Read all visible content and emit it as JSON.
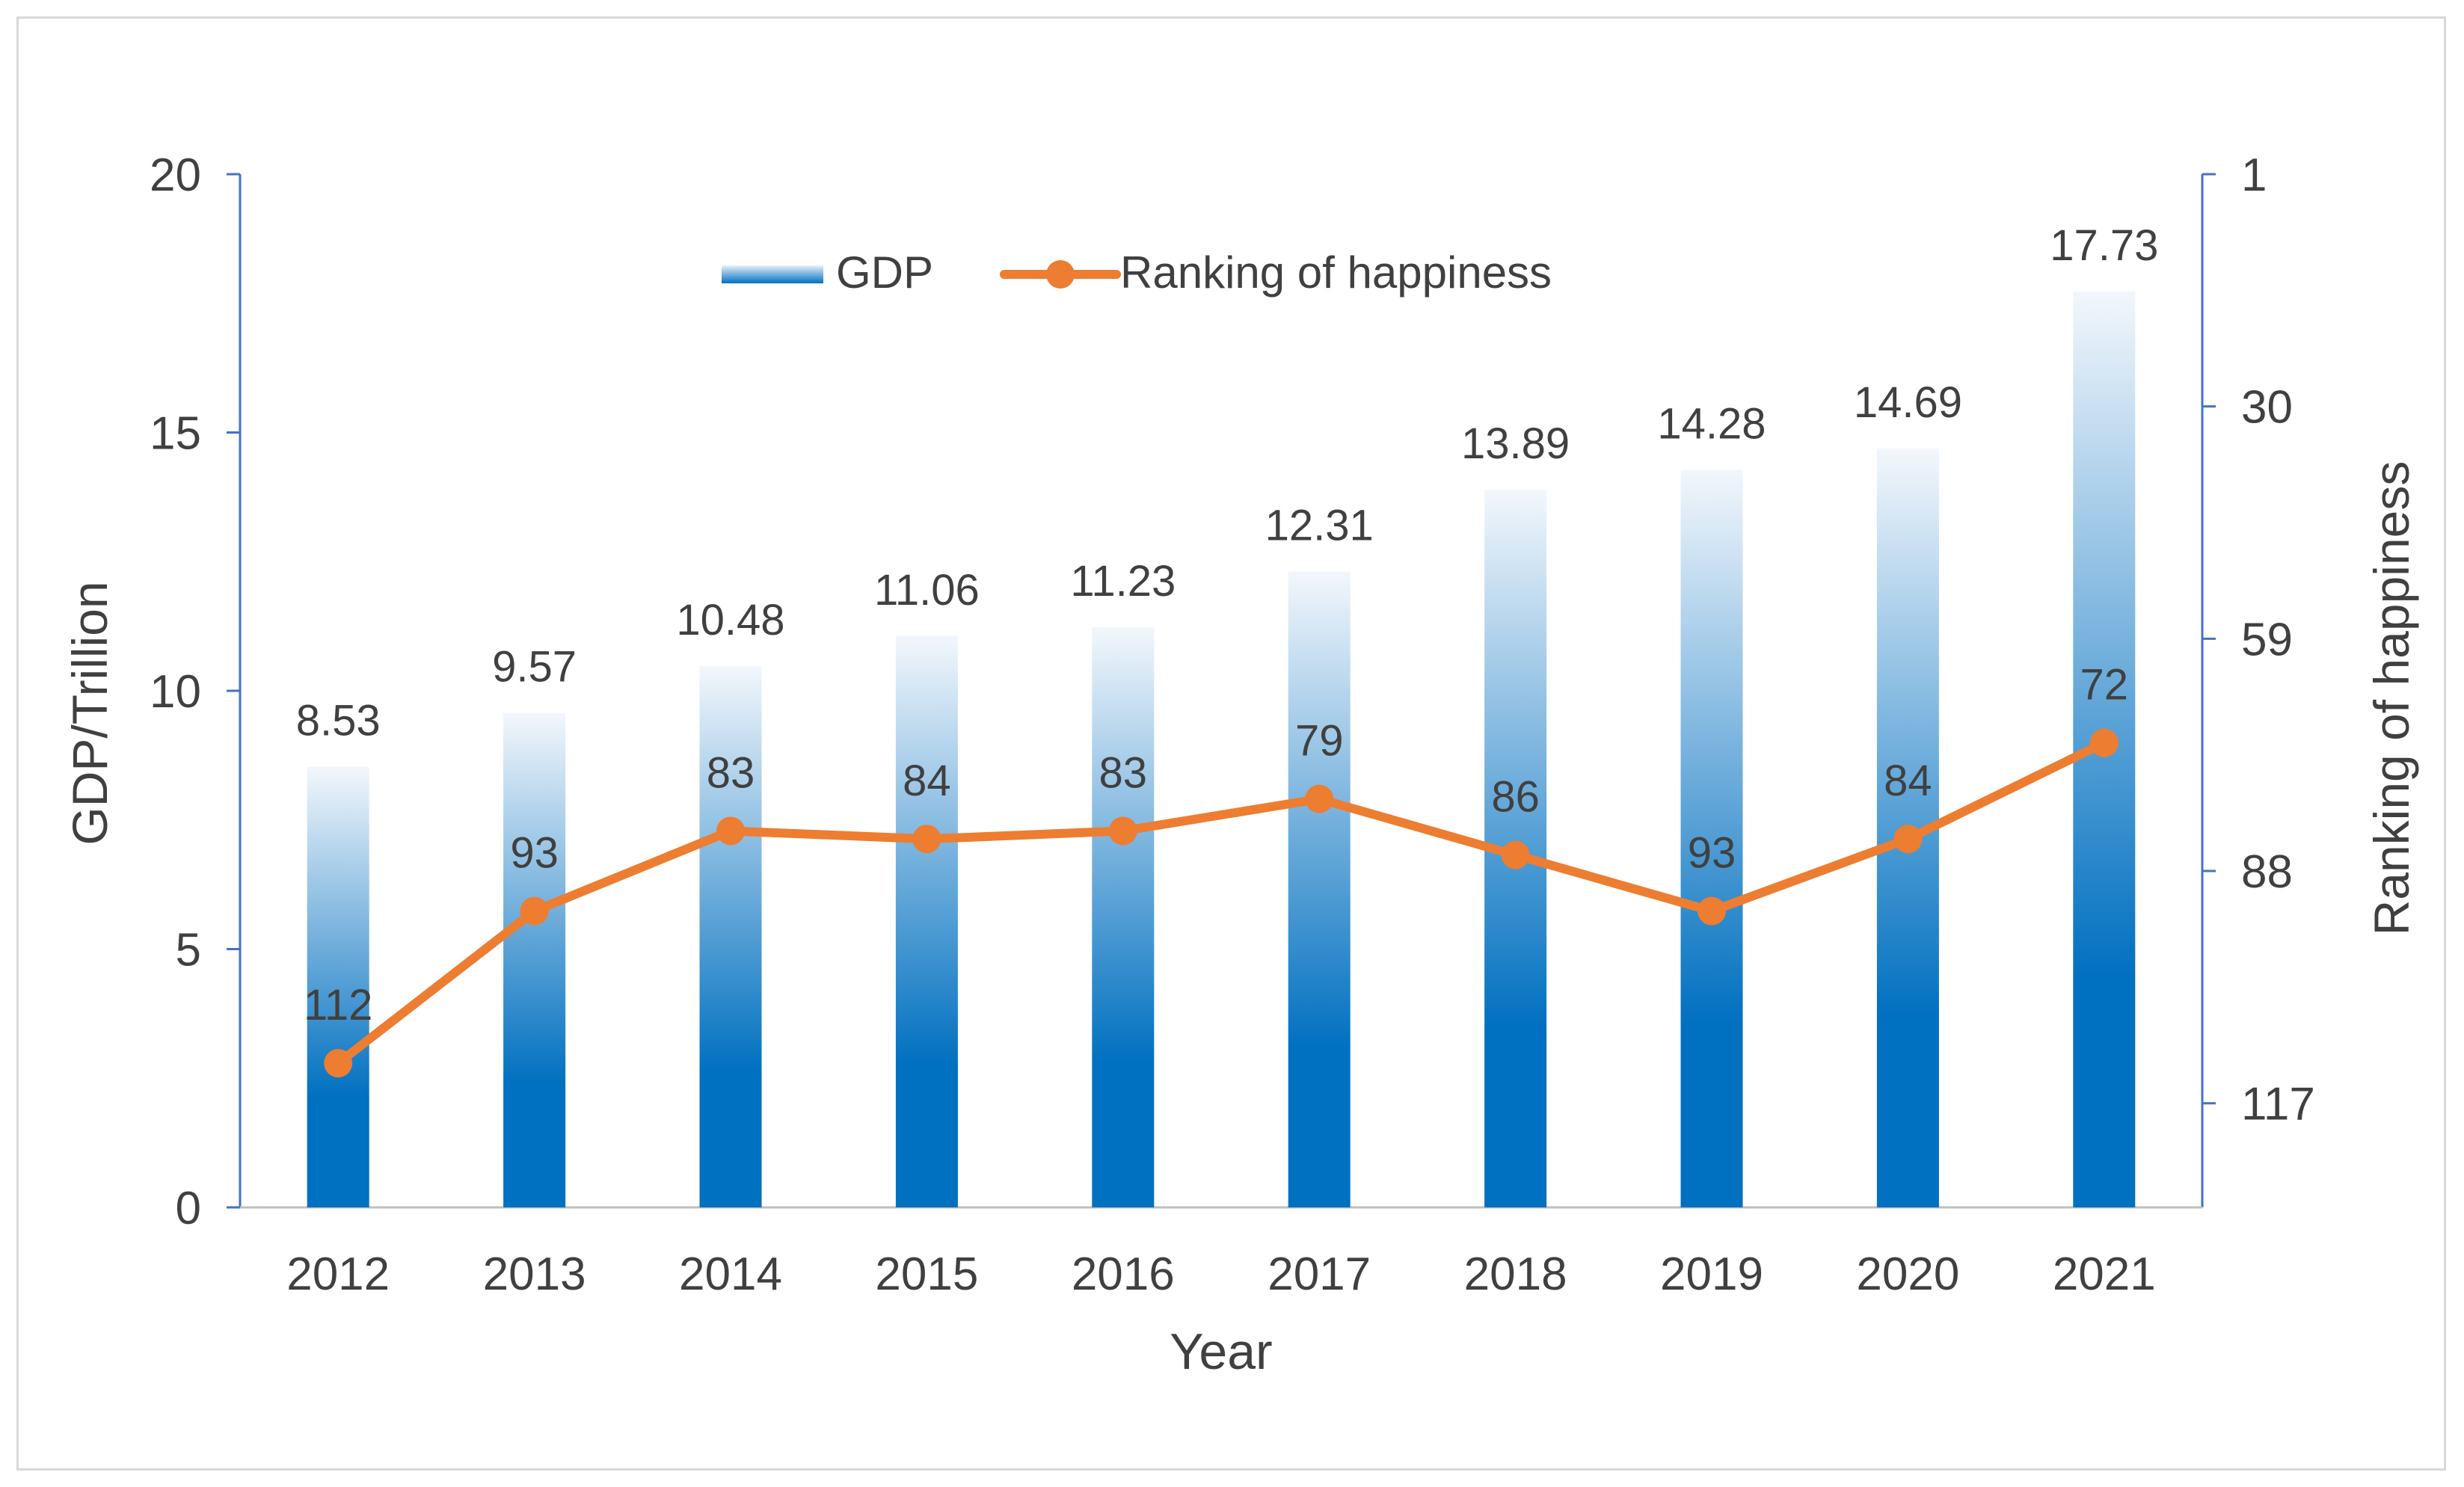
{
  "chart_data": {
    "type": "bar",
    "categories": [
      "2012",
      "2013",
      "2014",
      "2015",
      "2016",
      "2017",
      "2018",
      "2019",
      "2020",
      "2021"
    ],
    "series": [
      {
        "name": "GDP",
        "type": "bar",
        "axis": "left",
        "values": [
          8.53,
          9.57,
          10.48,
          11.06,
          11.23,
          12.31,
          13.89,
          14.28,
          14.69,
          17.73
        ],
        "labels": [
          "8.53",
          "9.57",
          "10.48",
          "11.06",
          "11.23",
          "12.31",
          "13.89",
          "14.28",
          "14.69",
          "17.73"
        ]
      },
      {
        "name": "Ranking of happiness",
        "type": "line",
        "axis": "right",
        "values": [
          112,
          93,
          83,
          84,
          83,
          79,
          86,
          93,
          84,
          72
        ],
        "labels": [
          "112",
          "93",
          "83",
          "84",
          "83",
          "79",
          "86",
          "93",
          "84",
          "72"
        ]
      }
    ],
    "xlabel": "Year",
    "ylabel": "GDP/Trillion",
    "y2label": "Ranking of happiness",
    "ylim": [
      0,
      20
    ],
    "yticks": [
      "0",
      "5",
      "10",
      "15",
      "20"
    ],
    "y2lim": [
      1,
      130
    ],
    "y2ticks": [
      "1",
      "30",
      "59",
      "88",
      "117"
    ],
    "y2_inverted": true,
    "legend_position": "top-center",
    "grid": false,
    "colors": {
      "bar_dark": "#0070c0",
      "bar_light": "#ffffff",
      "line": "#ed7d31",
      "axis": "#4472c4",
      "text": "#404040"
    }
  }
}
